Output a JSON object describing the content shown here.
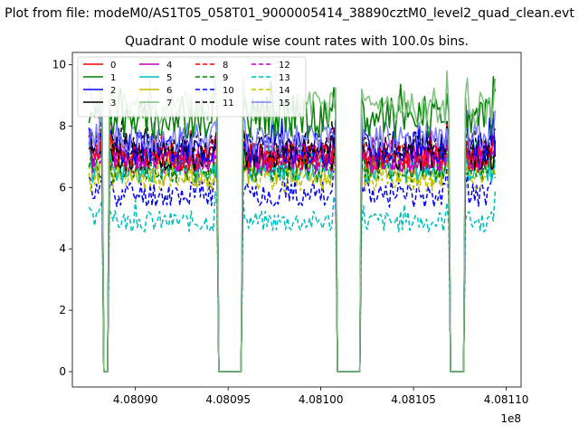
{
  "chart_data": {
    "type": "line",
    "suptitle": "Plot from file: modeM0/AS1T05_058T01_9000005414_38890cztM0_level2_quad_clean.evt",
    "title": "Quadrant 0 module wise count rates with 100.0s bins.",
    "xlabel": "",
    "ylabel": "",
    "x_offset_label": "1e8",
    "xlim": [
      4.080866,
      4.081108
    ],
    "ylim": [
      -0.5,
      10.4
    ],
    "grid": false,
    "legend_position": "top-left",
    "xticks": [
      4.0809,
      4.08095,
      4.081,
      4.08105,
      4.0811
    ],
    "xtick_labels": [
      "4.08090",
      "4.08095",
      "4.08100",
      "4.08105",
      "4.08110"
    ],
    "yticks": [
      0,
      2,
      4,
      6,
      8,
      10
    ],
    "ytick_labels": [
      "0",
      "2",
      "4",
      "6",
      "8",
      "10"
    ],
    "segments": [
      [
        4.080875,
        4.080882
      ],
      [
        4.080886,
        4.080944
      ],
      [
        4.080958,
        4.081008
      ],
      [
        4.081022,
        4.081069
      ],
      [
        4.081078,
        4.081094
      ]
    ],
    "gaps": [
      [
        4.080882,
        4.080886
      ],
      [
        4.080944,
        4.080958
      ],
      [
        4.081008,
        4.081022
      ],
      [
        4.081069,
        4.081078
      ]
    ],
    "series": [
      {
        "name": "0",
        "color": "#ff0000",
        "dash": "solid",
        "level": 7.0,
        "amp": 0.45
      },
      {
        "name": "1",
        "color": "#008000",
        "dash": "solid",
        "level": 8.3,
        "amp": 0.7
      },
      {
        "name": "2",
        "color": "#0000ff",
        "dash": "solid",
        "level": 7.3,
        "amp": 0.55
      },
      {
        "name": "3",
        "color": "#000000",
        "dash": "solid",
        "level": 7.0,
        "amp": 0.45
      },
      {
        "name": "4",
        "color": "#bf00bf",
        "dash": "solid",
        "level": 7.0,
        "amp": 0.5
      },
      {
        "name": "5",
        "color": "#00bfbf",
        "dash": "solid",
        "level": 6.6,
        "amp": 0.45
      },
      {
        "name": "6",
        "color": "#bfbf00",
        "dash": "solid",
        "level": 6.5,
        "amp": 0.45
      },
      {
        "name": "7",
        "color": "#80c080",
        "dash": "solid",
        "level": 8.6,
        "amp": 0.55
      },
      {
        "name": "8",
        "color": "#ff0000",
        "dash": "dashed",
        "level": 7.1,
        "amp": 0.45
      },
      {
        "name": "9",
        "color": "#008000",
        "dash": "dashed",
        "level": 6.6,
        "amp": 0.45
      },
      {
        "name": "10",
        "color": "#0000ff",
        "dash": "dashed",
        "level": 5.8,
        "amp": 0.45
      },
      {
        "name": "11",
        "color": "#000000",
        "dash": "dashed",
        "level": 7.4,
        "amp": 0.45
      },
      {
        "name": "12",
        "color": "#bf00bf",
        "dash": "dashed",
        "level": 6.9,
        "amp": 0.45
      },
      {
        "name": "13",
        "color": "#00bfbf",
        "dash": "dashed",
        "level": 4.9,
        "amp": 0.35
      },
      {
        "name": "14",
        "color": "#bfbf00",
        "dash": "dashed",
        "level": 6.3,
        "amp": 0.45
      },
      {
        "name": "15",
        "color": "#8080ff",
        "dash": "solid",
        "level": 7.6,
        "amp": 0.55
      }
    ]
  }
}
